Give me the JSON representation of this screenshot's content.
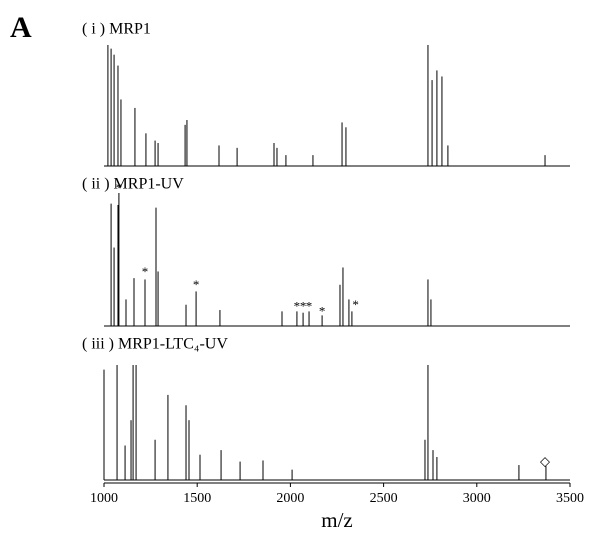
{
  "chart_data": {
    "type": "spectrum",
    "panel_label": "A",
    "xlabel": "m/z",
    "xlim": [
      1000,
      3500
    ],
    "xticks": [
      1000,
      1500,
      2000,
      2500,
      3000,
      3500
    ],
    "ylim": [
      0,
      100
    ],
    "panels": [
      {
        "title": "( i ) MRP1",
        "x": [
          1021,
          1038,
          1054,
          1075,
          1091,
          1166,
          1225,
          1274,
          1290,
          1435,
          1445,
          1617,
          1714,
          1912,
          1928,
          1976,
          2121,
          2277,
          2298,
          2738,
          2760,
          2786,
          2813,
          2845,
          3366
        ],
        "values": [
          100,
          97,
          92,
          83,
          55,
          48,
          27,
          21,
          19,
          34,
          38,
          17,
          15,
          19,
          15,
          9,
          9,
          36,
          32,
          100,
          71,
          79,
          74,
          17,
          9
        ],
        "annotations": []
      },
      {
        "title": "( ii ) MRP1-UV",
        "x": [
          1038,
          1054,
          1075,
          1080,
          1118,
          1161,
          1220,
          1279,
          1290,
          1440,
          1494,
          1622,
          1955,
          2035,
          2068,
          2100,
          2170,
          2266,
          2282,
          2314,
          2330,
          2738,
          2754
        ],
        "values": [
          92,
          59,
          91,
          100,
          20,
          36,
          35,
          89,
          41,
          16,
          26,
          12,
          11,
          11,
          10,
          11,
          8,
          31,
          44,
          20,
          11,
          35,
          20
        ],
        "annotations": [
          {
            "text": "*",
            "x": 1080,
            "y": 103
          },
          {
            "text": "*",
            "x": 1220,
            "y": 40
          },
          {
            "text": "*",
            "x": 1494,
            "y": 30
          },
          {
            "text": "*",
            "x": 2035,
            "y": 14
          },
          {
            "text": "*",
            "x": 2068,
            "y": 14
          },
          {
            "text": "*",
            "x": 2100,
            "y": 14
          },
          {
            "text": "*",
            "x": 2170,
            "y": 10
          },
          {
            "text": "*",
            "x": 2350,
            "y": 15
          }
        ]
      },
      {
        "title": "( iii ) MRP1-LTC₄-UV",
        "x": [
          1000,
          1070,
          1113,
          1145,
          1156,
          1172,
          1274,
          1343,
          1440,
          1456,
          1515,
          1628,
          1730,
          1853,
          2009,
          2722,
          2738,
          2765,
          2786,
          3226,
          3371
        ],
        "values": [
          96,
          100,
          30,
          52,
          100,
          100,
          35,
          74,
          65,
          52,
          22,
          26,
          16,
          17,
          9,
          35,
          100,
          26,
          20,
          13,
          12
        ],
        "annotations": [
          {
            "text": "◇",
            "x": 3366,
            "y": 15
          }
        ]
      }
    ]
  }
}
